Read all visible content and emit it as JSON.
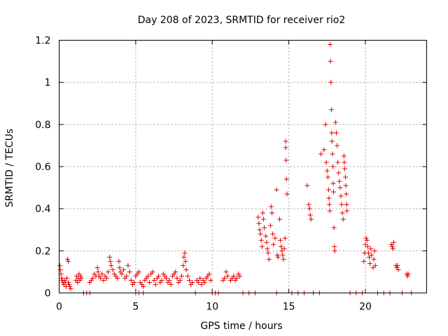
{
  "chart_data": {
    "type": "scatter",
    "title": "Day 208 of 2023, SRMTID for receiver rio2",
    "xlabel": "GPS time / hours",
    "ylabel": "SRMTID / TECUs",
    "xlim": [
      0,
      24
    ],
    "ylim": [
      0,
      1.2
    ],
    "grid": true,
    "marker": "+",
    "color": "#e00000",
    "xticks": [
      0,
      5,
      10,
      15,
      20
    ],
    "xtick_labels": [
      "0",
      "5",
      "10",
      "15",
      "20"
    ],
    "yticks": [
      0,
      0.2,
      0.4,
      0.6,
      0.8,
      1.0,
      1.2
    ],
    "ytick_labels": [
      "0",
      "0.2",
      "0.4",
      "0.6",
      "0.8",
      "1",
      "1.2"
    ],
    "series": [
      {
        "name": "SRMTID",
        "points": [
          [
            0.05,
            0.13
          ],
          [
            0.08,
            0.11
          ],
          [
            0.12,
            0.09
          ],
          [
            0.15,
            0.07
          ],
          [
            0.2,
            0.06
          ],
          [
            0.25,
            0.05
          ],
          [
            0.3,
            0.04
          ],
          [
            0.35,
            0.06
          ],
          [
            0.4,
            0.05
          ],
          [
            0.45,
            0.03
          ],
          [
            0.5,
            0.07
          ],
          [
            0.55,
            0.16
          ],
          [
            0.6,
            0.15
          ],
          [
            0.6,
            0.05
          ],
          [
            0.65,
            0.04
          ],
          [
            0.7,
            0.03
          ],
          [
            0.75,
            0.02
          ],
          [
            1.1,
            0.06
          ],
          [
            1.15,
            0.08
          ],
          [
            1.2,
            0.05
          ],
          [
            1.25,
            0.07
          ],
          [
            1.3,
            0.09
          ],
          [
            1.35,
            0.06
          ],
          [
            1.4,
            0.08
          ],
          [
            1.45,
            0.07
          ],
          [
            2.0,
            0.05
          ],
          [
            2.1,
            0.06
          ],
          [
            2.2,
            0.07
          ],
          [
            2.3,
            0.09
          ],
          [
            2.4,
            0.08
          ],
          [
            2.5,
            0.12
          ],
          [
            2.55,
            0.1
          ],
          [
            2.6,
            0.08
          ],
          [
            2.7,
            0.07
          ],
          [
            2.8,
            0.09
          ],
          [
            2.9,
            0.06
          ],
          [
            3.0,
            0.08
          ],
          [
            3.1,
            0.07
          ],
          [
            3.2,
            0.1
          ],
          [
            3.3,
            0.17
          ],
          [
            3.35,
            0.15
          ],
          [
            3.4,
            0.13
          ],
          [
            3.5,
            0.11
          ],
          [
            3.6,
            0.09
          ],
          [
            3.7,
            0.08
          ],
          [
            3.8,
            0.07
          ],
          [
            3.9,
            0.15
          ],
          [
            3.95,
            0.12
          ],
          [
            4.0,
            0.1
          ],
          [
            4.1,
            0.09
          ],
          [
            4.2,
            0.11
          ],
          [
            4.3,
            0.07
          ],
          [
            4.4,
            0.08
          ],
          [
            4.5,
            0.13
          ],
          [
            4.6,
            0.1
          ],
          [
            4.7,
            0.06
          ],
          [
            4.8,
            0.04
          ],
          [
            4.9,
            0.05
          ],
          [
            5.0,
            0.08
          ],
          [
            5.1,
            0.09
          ],
          [
            5.2,
            0.1
          ],
          [
            5.3,
            0.05
          ],
          [
            5.4,
            0.04
          ],
          [
            5.5,
            0.03
          ],
          [
            5.6,
            0.06
          ],
          [
            5.7,
            0.07
          ],
          [
            5.8,
            0.08
          ],
          [
            5.9,
            0.05
          ],
          [
            6.0,
            0.09
          ],
          [
            6.1,
            0.1
          ],
          [
            6.2,
            0.06
          ],
          [
            6.3,
            0.04
          ],
          [
            6.4,
            0.07
          ],
          [
            6.5,
            0.08
          ],
          [
            6.6,
            0.05
          ],
          [
            6.7,
            0.06
          ],
          [
            6.8,
            0.09
          ],
          [
            6.9,
            0.08
          ],
          [
            7.0,
            0.07
          ],
          [
            7.1,
            0.05
          ],
          [
            7.2,
            0.06
          ],
          [
            7.3,
            0.04
          ],
          [
            7.4,
            0.08
          ],
          [
            7.5,
            0.09
          ],
          [
            7.6,
            0.1
          ],
          [
            7.7,
            0.07
          ],
          [
            7.8,
            0.05
          ],
          [
            7.9,
            0.06
          ],
          [
            8.0,
            0.08
          ],
          [
            8.1,
            0.13
          ],
          [
            8.15,
            0.17
          ],
          [
            8.2,
            0.19
          ],
          [
            8.25,
            0.15
          ],
          [
            8.3,
            0.11
          ],
          [
            8.4,
            0.08
          ],
          [
            8.5,
            0.06
          ],
          [
            8.6,
            0.04
          ],
          [
            8.7,
            0.05
          ],
          [
            9.0,
            0.06
          ],
          [
            9.1,
            0.05
          ],
          [
            9.2,
            0.07
          ],
          [
            9.3,
            0.04
          ],
          [
            9.4,
            0.06
          ],
          [
            9.5,
            0.05
          ],
          [
            9.6,
            0.07
          ],
          [
            9.7,
            0.08
          ],
          [
            9.8,
            0.09
          ],
          [
            9.9,
            0.06
          ],
          [
            10.7,
            0.06
          ],
          [
            10.8,
            0.07
          ],
          [
            10.9,
            0.1
          ],
          [
            11.0,
            0.08
          ],
          [
            11.2,
            0.06
          ],
          [
            11.3,
            0.07
          ],
          [
            11.4,
            0.08
          ],
          [
            11.5,
            0.06
          ],
          [
            11.6,
            0.07
          ],
          [
            11.7,
            0.09
          ],
          [
            11.8,
            0.08
          ],
          [
            13.0,
            0.36
          ],
          [
            13.05,
            0.33
          ],
          [
            13.1,
            0.3
          ],
          [
            13.15,
            0.28
          ],
          [
            13.2,
            0.25
          ],
          [
            13.25,
            0.22
          ],
          [
            13.3,
            0.38
          ],
          [
            13.35,
            0.35
          ],
          [
            13.4,
            0.31
          ],
          [
            13.5,
            0.27
          ],
          [
            13.55,
            0.24
          ],
          [
            13.6,
            0.21
          ],
          [
            13.65,
            0.19
          ],
          [
            13.7,
            0.16
          ],
          [
            13.8,
            0.32
          ],
          [
            13.85,
            0.41
          ],
          [
            13.9,
            0.38
          ],
          [
            13.95,
            0.28
          ],
          [
            14.0,
            0.23
          ],
          [
            14.1,
            0.26
          ],
          [
            14.2,
            0.49
          ],
          [
            14.25,
            0.18
          ],
          [
            14.3,
            0.17
          ],
          [
            14.4,
            0.35
          ],
          [
            14.45,
            0.25
          ],
          [
            14.5,
            0.22
          ],
          [
            14.55,
            0.2
          ],
          [
            14.6,
            0.18
          ],
          [
            14.65,
            0.16
          ],
          [
            14.7,
            0.21
          ],
          [
            14.75,
            0.26
          ],
          [
            14.8,
            0.72
          ],
          [
            14.8,
            0.69
          ],
          [
            14.82,
            0.63
          ],
          [
            14.85,
            0.54
          ],
          [
            14.88,
            0.47
          ],
          [
            16.2,
            0.51
          ],
          [
            16.3,
            0.42
          ],
          [
            16.35,
            0.4
          ],
          [
            16.4,
            0.37
          ],
          [
            16.45,
            0.35
          ],
          [
            17.1,
            0.66
          ],
          [
            17.3,
            0.68
          ],
          [
            17.4,
            0.8
          ],
          [
            17.45,
            0.62
          ],
          [
            17.5,
            0.58
          ],
          [
            17.55,
            0.55
          ],
          [
            17.6,
            0.49
          ],
          [
            17.62,
            0.45
          ],
          [
            17.65,
            0.42
          ],
          [
            17.68,
            0.39
          ],
          [
            17.7,
            1.18
          ],
          [
            17.72,
            1.1
          ],
          [
            17.75,
            1.0
          ],
          [
            17.78,
            0.87
          ],
          [
            17.8,
            0.76
          ],
          [
            17.82,
            0.72
          ],
          [
            17.85,
            0.66
          ],
          [
            17.88,
            0.6
          ],
          [
            17.9,
            0.52
          ],
          [
            17.92,
            0.48
          ],
          [
            17.95,
            0.31
          ],
          [
            17.98,
            0.22
          ],
          [
            18.0,
            0.2
          ],
          [
            18.05,
            0.81
          ],
          [
            18.1,
            0.76
          ],
          [
            18.15,
            0.7
          ],
          [
            18.2,
            0.62
          ],
          [
            18.25,
            0.57
          ],
          [
            18.3,
            0.53
          ],
          [
            18.35,
            0.5
          ],
          [
            18.4,
            0.46
          ],
          [
            18.45,
            0.42
          ],
          [
            18.5,
            0.38
          ],
          [
            18.55,
            0.35
          ],
          [
            18.6,
            0.65
          ],
          [
            18.62,
            0.62
          ],
          [
            18.65,
            0.59
          ],
          [
            18.7,
            0.55
          ],
          [
            18.72,
            0.51
          ],
          [
            18.75,
            0.47
          ],
          [
            18.78,
            0.42
          ],
          [
            18.8,
            0.39
          ],
          [
            19.9,
            0.15
          ],
          [
            19.95,
            0.19
          ],
          [
            20.0,
            0.23
          ],
          [
            20.05,
            0.26
          ],
          [
            20.1,
            0.25
          ],
          [
            20.15,
            0.22
          ],
          [
            20.2,
            0.19
          ],
          [
            20.25,
            0.17
          ],
          [
            20.3,
            0.14
          ],
          [
            20.35,
            0.21
          ],
          [
            20.4,
            0.18
          ],
          [
            20.5,
            0.12
          ],
          [
            20.55,
            0.16
          ],
          [
            20.6,
            0.2
          ],
          [
            20.65,
            0.13
          ],
          [
            21.7,
            0.23
          ],
          [
            21.75,
            0.22
          ],
          [
            21.8,
            0.21
          ],
          [
            21.85,
            0.24
          ],
          [
            22.0,
            0.13
          ],
          [
            22.05,
            0.12
          ],
          [
            22.1,
            0.13
          ],
          [
            22.15,
            0.11
          ],
          [
            22.7,
            0.09
          ],
          [
            22.75,
            0.08
          ],
          [
            22.8,
            0.09
          ],
          [
            1.6,
            0.0
          ],
          [
            1.8,
            0.0
          ],
          [
            2.0,
            0.0
          ],
          [
            5.0,
            0.0
          ],
          [
            5.2,
            0.0
          ],
          [
            5.5,
            0.0
          ],
          [
            8.9,
            0.0
          ],
          [
            10.0,
            0.0
          ],
          [
            10.2,
            0.0
          ],
          [
            10.4,
            0.0
          ],
          [
            12.0,
            0.0
          ],
          [
            12.4,
            0.0
          ],
          [
            12.8,
            0.0
          ],
          [
            14.2,
            0.0
          ],
          [
            15.2,
            0.0
          ],
          [
            15.6,
            0.0
          ],
          [
            16.0,
            0.0
          ],
          [
            16.6,
            0.0
          ],
          [
            17.0,
            0.0
          ],
          [
            19.0,
            0.0
          ],
          [
            19.4,
            0.0
          ],
          [
            19.8,
            0.0
          ],
          [
            20.8,
            0.0
          ],
          [
            21.2,
            0.0
          ],
          [
            21.6,
            0.0
          ],
          [
            22.4,
            0.0
          ],
          [
            23.0,
            0.0
          ]
        ]
      }
    ]
  }
}
